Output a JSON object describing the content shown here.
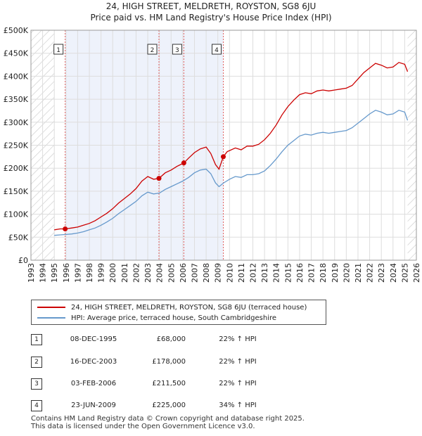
{
  "chart_data": {
    "type": "line",
    "title": "24, HIGH STREET, MELDRETH, ROYSTON, SG8 6JU",
    "subtitle": "Price paid vs. HM Land Registry's House Price Index (HPI)",
    "xlim": [
      1993,
      2026
    ],
    "ylim": [
      0,
      500000
    ],
    "x_ticks": [
      "1993",
      "1994",
      "1995",
      "1996",
      "1997",
      "1998",
      "1999",
      "2000",
      "2001",
      "2002",
      "2003",
      "2004",
      "2005",
      "2006",
      "2007",
      "2008",
      "2009",
      "2010",
      "2011",
      "2012",
      "2013",
      "2014",
      "2015",
      "2016",
      "2017",
      "2018",
      "2019",
      "2020",
      "2021",
      "2022",
      "2023",
      "2024",
      "2025",
      "2026"
    ],
    "y_ticks": [
      {
        "value": 0,
        "label": "£0"
      },
      {
        "value": 50000,
        "label": "£50K"
      },
      {
        "value": 100000,
        "label": "£100K"
      },
      {
        "value": 150000,
        "label": "£150K"
      },
      {
        "value": 200000,
        "label": "£200K"
      },
      {
        "value": 250000,
        "label": "£250K"
      },
      {
        "value": 300000,
        "label": "£300K"
      },
      {
        "value": 350000,
        "label": "£350K"
      },
      {
        "value": 400000,
        "label": "£400K"
      },
      {
        "value": 450000,
        "label": "£450K"
      },
      {
        "value": 500000,
        "label": "£500K"
      }
    ],
    "hatched_before": 1995.0,
    "hatched_after": 2025.25,
    "shaded_range": [
      1995.93,
      2009.47
    ],
    "series": [
      {
        "name": "24, HIGH STREET, MELDRETH, ROYSTON, SG8 6JU (terraced house)",
        "color": "#cc0000",
        "x": [
          1995.0,
          1995.5,
          1995.93,
          1996.5,
          1997.0,
          1997.5,
          1998.0,
          1998.5,
          1999.0,
          1999.5,
          2000.0,
          2000.5,
          2001.0,
          2001.5,
          2002.0,
          2002.5,
          2003.0,
          2003.5,
          2003.96,
          2004.5,
          2005.0,
          2005.5,
          2006.09,
          2006.5,
          2007.0,
          2007.5,
          2008.0,
          2008.4,
          2008.8,
          2009.1,
          2009.47,
          2009.8,
          2010.5,
          2011.0,
          2011.5,
          2012.0,
          2012.5,
          2013.0,
          2013.5,
          2014.0,
          2014.5,
          2015.0,
          2015.5,
          2016.0,
          2016.5,
          2017.0,
          2017.5,
          2018.0,
          2018.5,
          2019.0,
          2019.5,
          2020.0,
          2020.5,
          2021.0,
          2021.5,
          2022.0,
          2022.5,
          2023.0,
          2023.5,
          2024.0,
          2024.5,
          2025.0,
          2025.25
        ],
        "y": [
          66000,
          68000,
          68000,
          70000,
          72000,
          76000,
          80000,
          86000,
          94000,
          102000,
          112000,
          124000,
          134000,
          144000,
          156000,
          172000,
          182000,
          176000,
          178000,
          190000,
          196000,
          204000,
          211500,
          222000,
          234000,
          242000,
          246000,
          232000,
          208000,
          198000,
          225000,
          236000,
          244000,
          240000,
          248000,
          248000,
          252000,
          262000,
          276000,
          294000,
          316000,
          334000,
          348000,
          360000,
          364000,
          362000,
          368000,
          370000,
          368000,
          370000,
          372000,
          374000,
          380000,
          394000,
          408000,
          418000,
          428000,
          424000,
          418000,
          420000,
          430000,
          426000,
          410000
        ]
      },
      {
        "name": "HPI: Average price, terraced house, South Cambridgeshire",
        "color": "#6699cc",
        "x": [
          1995.0,
          1995.5,
          1996.0,
          1996.5,
          1997.0,
          1997.5,
          1998.0,
          1998.5,
          1999.0,
          1999.5,
          2000.0,
          2000.5,
          2001.0,
          2001.5,
          2002.0,
          2002.5,
          2003.0,
          2003.5,
          2004.0,
          2004.5,
          2005.0,
          2005.5,
          2006.0,
          2006.5,
          2007.0,
          2007.5,
          2008.0,
          2008.4,
          2008.8,
          2009.1,
          2009.5,
          2010.0,
          2010.5,
          2011.0,
          2011.5,
          2012.0,
          2012.5,
          2013.0,
          2013.5,
          2014.0,
          2014.5,
          2015.0,
          2015.5,
          2016.0,
          2016.5,
          2017.0,
          2017.5,
          2018.0,
          2018.5,
          2019.0,
          2019.5,
          2020.0,
          2020.5,
          2021.0,
          2021.5,
          2022.0,
          2022.5,
          2023.0,
          2023.5,
          2024.0,
          2024.5,
          2025.0,
          2025.25
        ],
        "y": [
          54000,
          55000,
          56000,
          57000,
          59000,
          62000,
          66000,
          70000,
          76000,
          83000,
          91000,
          101000,
          110000,
          119000,
          128000,
          140000,
          148000,
          144000,
          146000,
          154000,
          160000,
          166000,
          172000,
          180000,
          190000,
          196000,
          198000,
          188000,
          168000,
          160000,
          168000,
          176000,
          182000,
          180000,
          186000,
          186000,
          188000,
          194000,
          206000,
          220000,
          236000,
          250000,
          260000,
          270000,
          274000,
          272000,
          276000,
          278000,
          276000,
          278000,
          280000,
          282000,
          288000,
          298000,
          308000,
          318000,
          326000,
          322000,
          316000,
          318000,
          326000,
          322000,
          304000
        ]
      }
    ],
    "markers": [
      {
        "label": "1",
        "x": 1995.93,
        "y": 68000
      },
      {
        "label": "2",
        "x": 2003.96,
        "y": 178000
      },
      {
        "label": "3",
        "x": 2006.09,
        "y": 211500
      },
      {
        "label": "4",
        "x": 2009.47,
        "y": 225000
      }
    ]
  },
  "legend": {
    "property_label": "24, HIGH STREET, MELDRETH, ROYSTON, SG8 6JU (terraced house)",
    "hpi_label": "HPI: Average price, terraced house, South Cambridgeshire",
    "property_color": "#cc0000",
    "hpi_color": "#6699cc"
  },
  "sales": [
    {
      "num": "1",
      "date": "08-DEC-1995",
      "price": "£68,000",
      "hpi": "22% ↑ HPI"
    },
    {
      "num": "2",
      "date": "16-DEC-2003",
      "price": "£178,000",
      "hpi": "22% ↑ HPI"
    },
    {
      "num": "3",
      "date": "03-FEB-2006",
      "price": "£211,500",
      "hpi": "22% ↑ HPI"
    },
    {
      "num": "4",
      "date": "23-JUN-2009",
      "price": "£225,000",
      "hpi": "34% ↑ HPI"
    }
  ],
  "footer": {
    "line1": "Contains HM Land Registry data © Crown copyright and database right 2025.",
    "line2": "This data is licensed under the Open Government Licence v3.0."
  }
}
